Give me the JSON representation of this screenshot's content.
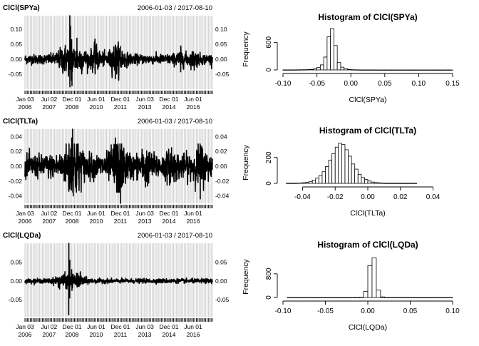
{
  "chart_data": [
    {
      "type": "line",
      "title": "ClCl(SPYa)",
      "date_range": "2006-01-03 / 2017-08-10",
      "x_tick_labels": [
        [
          "Jan 03",
          "2006"
        ],
        [
          "Jul 02",
          "2007"
        ],
        [
          "Dec 01",
          "2008"
        ],
        [
          "Jun 01",
          "2010"
        ],
        [
          "Dec 01",
          "2011"
        ],
        [
          "Jun 03",
          "2013"
        ],
        [
          "Dec 01",
          "2014"
        ],
        [
          "Jun 01",
          "2016"
        ]
      ],
      "x_ticks": [
        "2006-01-03",
        "2007-07-02",
        "2008-12-01",
        "2010-06-01",
        "2011-12-01",
        "2013-06-03",
        "2014-12-01",
        "2016-06-01"
      ],
      "x_range": [
        "2006-01-03",
        "2017-08-10"
      ],
      "y_ticks": [
        0.1,
        0.05,
        0.0,
        -0.05
      ],
      "y_tick_labels": [
        "0.10",
        "0.05",
        "0.00",
        "-0.05"
      ],
      "ylim": [
        -0.1,
        0.145
      ],
      "grid": true,
      "base_amp": 0.011,
      "spikes": [
        [
          "2008-10-13",
          0.145
        ],
        [
          "2008-10-15",
          -0.092
        ],
        [
          "2008-10-28",
          0.11
        ],
        [
          "2008-12-01",
          -0.088
        ],
        [
          "2008-11-24",
          0.065
        ],
        [
          "2008-11-20",
          -0.07
        ],
        [
          "2009-03-23",
          0.07
        ],
        [
          "2010-05-10",
          0.046
        ],
        [
          "2010-05-06",
          -0.035
        ],
        [
          "2011-08-08",
          -0.065
        ],
        [
          "2011-08-09",
          0.047
        ],
        [
          "2011-11-30",
          0.042
        ],
        [
          "2015-08-24",
          -0.042
        ],
        [
          "2016-06-24",
          -0.036
        ]
      ]
    },
    {
      "type": "histogram",
      "title": "Histogram of ClCl(SPYa)",
      "xlabel": "ClCl(SPYa)",
      "ylabel": "Frequency",
      "x_ticks": [
        -0.1,
        -0.05,
        0.0,
        0.05,
        0.1,
        0.15
      ],
      "x_tick_labels": [
        "-0.10",
        "-0.05",
        "0.00",
        "0.05",
        "0.10",
        "0.15"
      ],
      "y_ticks": [
        0,
        600
      ],
      "y_tick_labels": [
        "0",
        "600"
      ],
      "bin_width": 0.005,
      "bins_start": -0.1,
      "counts": [
        2,
        1,
        2,
        2,
        3,
        4,
        5,
        8,
        12,
        25,
        55,
        110,
        280,
        720,
        900,
        530,
        160,
        60,
        25,
        10,
        5,
        3,
        2,
        1,
        1,
        1,
        1,
        0,
        0,
        0,
        0,
        0,
        0,
        0,
        0,
        0,
        0,
        0,
        0,
        0,
        0,
        0,
        0,
        0,
        0,
        0,
        0,
        0,
        1,
        0
      ],
      "xlim": [
        -0.1,
        0.15
      ],
      "ylim": [
        0,
        900
      ]
    },
    {
      "type": "line",
      "title": "ClCl(TLTa)",
      "date_range": "2006-01-03 / 2017-08-10",
      "x_tick_labels": [
        [
          "Jan 03",
          "2006"
        ],
        [
          "Jul 02",
          "2007"
        ],
        [
          "Dec 01",
          "2008"
        ],
        [
          "Jun 01",
          "2010"
        ],
        [
          "Dec 01",
          "2011"
        ],
        [
          "Jun 03",
          "2013"
        ],
        [
          "Dec 01",
          "2014"
        ],
        [
          "Jun 01",
          "2016"
        ]
      ],
      "x_ticks": [
        "2006-01-03",
        "2007-07-02",
        "2008-12-01",
        "2010-06-01",
        "2011-12-01",
        "2013-06-03",
        "2014-12-01",
        "2016-06-01"
      ],
      "x_range": [
        "2006-01-03",
        "2017-08-10"
      ],
      "y_ticks": [
        0.04,
        0.02,
        0.0,
        -0.02,
        -0.04
      ],
      "y_tick_labels": [
        "0.04",
        "0.02",
        "0.00",
        "-0.02",
        "-0.04"
      ],
      "ylim": [
        -0.05,
        0.05
      ],
      "grid": true,
      "base_amp": 0.011,
      "spikes": [
        [
          "2008-12-16",
          0.05
        ],
        [
          "2008-11-26",
          0.038
        ],
        [
          "2008-12-30",
          -0.04
        ],
        [
          "2009-03-18",
          -0.025
        ],
        [
          "2011-08-08",
          0.038
        ],
        [
          "2011-11-30",
          -0.05
        ],
        [
          "2013-06-20",
          -0.028
        ],
        [
          "2016-11-09",
          -0.044
        ],
        [
          "2015-01-30",
          0.025
        ]
      ]
    },
    {
      "type": "histogram",
      "title": "Histogram of ClCl(TLTa)",
      "xlabel": "ClCl(TLTa)",
      "ylabel": "Frequency",
      "x_ticks": [
        -0.04,
        -0.02,
        0.0,
        0.02,
        0.04
      ],
      "x_tick_labels": [
        "-0.04",
        "-0.02",
        "0.00",
        "0.02",
        "0.04"
      ],
      "y_ticks": [
        0,
        200
      ],
      "y_tick_labels": [
        "0",
        "200"
      ],
      "bin_width": 0.002,
      "bins_start": -0.05,
      "counts": [
        1,
        1,
        1,
        2,
        3,
        5,
        8,
        15,
        25,
        40,
        60,
        90,
        130,
        180,
        230,
        280,
        310,
        300,
        260,
        210,
        150,
        110,
        70,
        45,
        30,
        18,
        10,
        6,
        4,
        2,
        1,
        1,
        1,
        1,
        1,
        1,
        1,
        1,
        1,
        1
      ],
      "xlim": [
        -0.052,
        0.052
      ],
      "ylim": [
        0,
        320
      ]
    },
    {
      "type": "line",
      "title": "ClCl(LQDa)",
      "date_range": "2006-01-03 / 2017-08-10",
      "x_tick_labels": [
        [
          "Jan 03",
          "2006"
        ],
        [
          "Jul 02",
          "2007"
        ],
        [
          "Dec 01",
          "2008"
        ],
        [
          "Jun 01",
          "2010"
        ],
        [
          "Dec 01",
          "2011"
        ],
        [
          "Jun 03",
          "2013"
        ],
        [
          "Dec 01",
          "2014"
        ],
        [
          "Jun 01",
          "2016"
        ]
      ],
      "x_ticks": [
        "2006-01-03",
        "2007-07-02",
        "2008-12-01",
        "2010-06-01",
        "2011-12-01",
        "2013-06-03",
        "2014-12-01",
        "2016-06-01"
      ],
      "x_range": [
        "2006-01-03",
        "2017-08-10"
      ],
      "y_ticks": [
        0.05,
        0.0,
        -0.05
      ],
      "y_tick_labels": [
        "0.05",
        "0.00",
        "-0.05"
      ],
      "ylim": [
        -0.095,
        0.1
      ],
      "grid": true,
      "base_amp": 0.004,
      "spikes": [
        [
          "2008-09-22",
          0.1
        ],
        [
          "2008-09-19",
          -0.09
        ],
        [
          "2008-10-13",
          0.055
        ],
        [
          "2008-10-10",
          -0.045
        ],
        [
          "2008-11-24",
          0.03
        ],
        [
          "2008-12-01",
          -0.025
        ],
        [
          "2009-04-09",
          0.02
        ]
      ]
    },
    {
      "type": "histogram",
      "title": "Histogram of ClCl(LQDa)",
      "xlabel": "ClCl(LQDa)",
      "ylabel": "Frequency",
      "x_ticks": [
        -0.1,
        -0.05,
        0.0,
        0.05,
        0.1
      ],
      "x_tick_labels": [
        "-0.10",
        "-0.05",
        "0.00",
        "0.05",
        "0.10"
      ],
      "y_ticks": [
        0,
        800
      ],
      "y_tick_labels": [
        "0",
        "800"
      ],
      "bin_width": 0.005,
      "bins_start": -0.095,
      "counts": [
        1,
        0,
        0,
        0,
        0,
        0,
        0,
        0,
        0,
        0,
        0,
        0,
        0,
        0,
        0,
        0,
        0,
        10,
        210,
        1080,
        1340,
        250,
        20,
        3,
        1,
        1,
        1,
        1,
        1,
        0,
        0,
        0,
        0,
        0,
        0,
        0,
        0,
        0,
        1
      ],
      "xlim": [
        -0.1,
        0.1
      ],
      "ylim": [
        0,
        1400
      ]
    }
  ]
}
